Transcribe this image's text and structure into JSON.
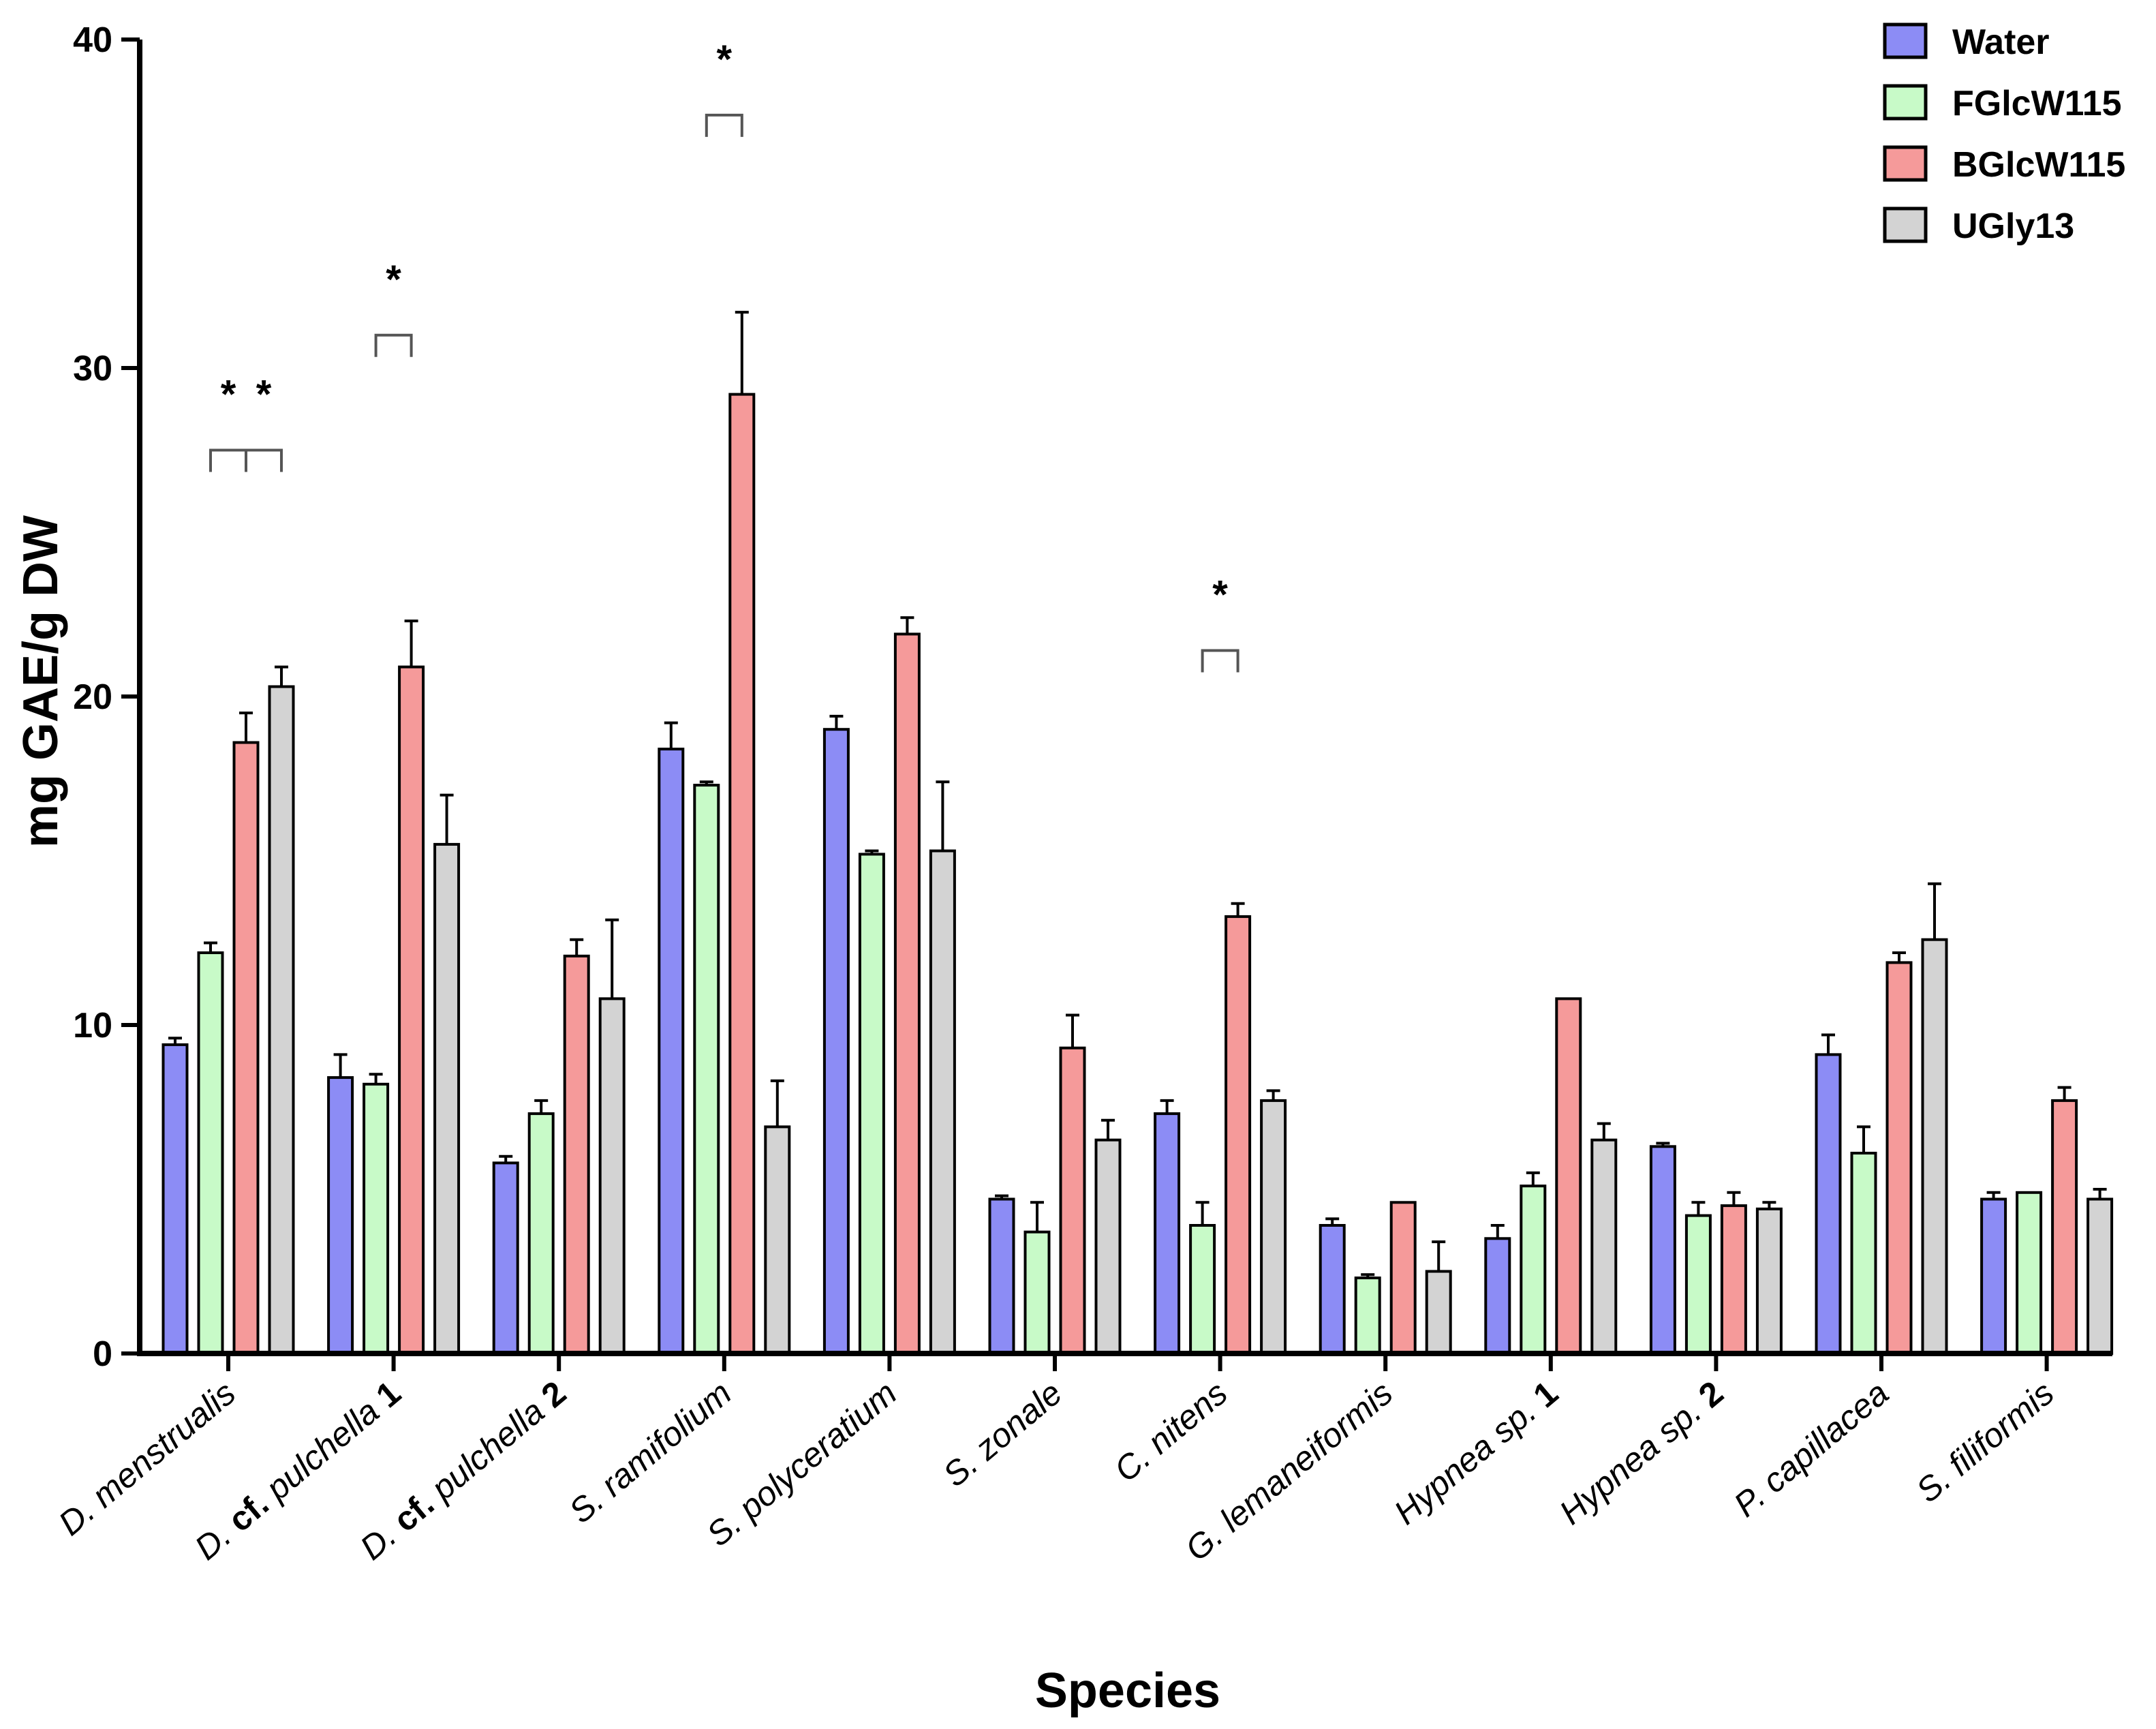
{
  "chart_data": {
    "type": "bar",
    "title": "",
    "xlabel": "Species",
    "ylabel": "mg GAE/g DW",
    "ylim": [
      0,
      40
    ],
    "yticks": [
      0,
      10,
      20,
      30,
      40
    ],
    "grid": false,
    "legend_position": "top-right",
    "categories": [
      [
        {
          "t": "D. menstrualis",
          "b": false
        }
      ],
      [
        {
          "t": "D. ",
          "b": false
        },
        {
          "t": "cf.",
          "b": true
        },
        {
          "t": " pulchella ",
          "b": false
        },
        {
          "t": "1",
          "b": true
        }
      ],
      [
        {
          "t": "D. ",
          "b": false
        },
        {
          "t": "cf.",
          "b": true
        },
        {
          "t": " pulchella ",
          "b": false
        },
        {
          "t": "2",
          "b": true
        }
      ],
      [
        {
          "t": "S. ramifolium",
          "b": false
        }
      ],
      [
        {
          "t": "S. polyceratium",
          "b": false
        }
      ],
      [
        {
          "t": "S. zonale",
          "b": false
        }
      ],
      [
        {
          "t": "C. nitens",
          "b": false
        }
      ],
      [
        {
          "t": "G. lemaneiformis",
          "b": false
        }
      ],
      [
        {
          "t": "Hypnea sp. ",
          "b": false
        },
        {
          "t": "1",
          "b": true
        }
      ],
      [
        {
          "t": "Hypnea sp. ",
          "b": false
        },
        {
          "t": "2",
          "b": true
        }
      ],
      [
        {
          "t": "P. capillacea",
          "b": false
        }
      ],
      [
        {
          "t": "S. filiformis",
          "b": false
        }
      ]
    ],
    "series": [
      {
        "name": "Water",
        "color": "#8c8cf5",
        "values": [
          9.4,
          8.4,
          5.8,
          18.4,
          19.0,
          4.7,
          7.3,
          3.9,
          3.5,
          6.3,
          9.1,
          4.7
        ],
        "errors": [
          0.2,
          0.7,
          0.2,
          0.8,
          0.4,
          0.1,
          0.4,
          0.2,
          0.4,
          0.1,
          0.6,
          0.2
        ]
      },
      {
        "name": "FGlcW115",
        "color": "#c8fac8",
        "values": [
          12.2,
          8.2,
          7.3,
          17.3,
          15.2,
          3.7,
          3.9,
          2.3,
          5.1,
          4.2,
          6.1,
          4.9
        ],
        "errors": [
          0.3,
          0.3,
          0.4,
          0.1,
          0.1,
          0.9,
          0.7,
          0.1,
          0.4,
          0.4,
          0.8,
          0.0
        ]
      },
      {
        "name": "BGlcW115",
        "color": "#f59a9a",
        "values": [
          18.6,
          20.9,
          12.1,
          29.2,
          21.9,
          9.3,
          13.3,
          4.6,
          10.8,
          4.5,
          11.9,
          7.7
        ],
        "errors": [
          0.9,
          1.4,
          0.5,
          2.5,
          0.5,
          1.0,
          0.4,
          0.0,
          0.0,
          0.4,
          0.3,
          0.4
        ]
      },
      {
        "name": "UGly13",
        "color": "#d3d3d3",
        "values": [
          20.3,
          15.5,
          10.8,
          6.9,
          15.3,
          6.5,
          7.7,
          2.5,
          6.5,
          4.4,
          12.6,
          4.7
        ],
        "errors": [
          0.6,
          1.5,
          2.4,
          1.4,
          2.1,
          0.6,
          0.3,
          0.9,
          0.5,
          0.2,
          1.7,
          0.3
        ]
      }
    ],
    "significance": [
      {
        "category": 0,
        "from_series": 1,
        "to_series": 2,
        "bracket_y": 27.5,
        "label": "*"
      },
      {
        "category": 0,
        "from_series": 2,
        "to_series": 3,
        "bracket_y": 27.5,
        "label": "*"
      },
      {
        "category": 1,
        "from_series": 1,
        "to_series": 2,
        "bracket_y": 31.0,
        "label": "*"
      },
      {
        "category": 3,
        "from_series": 1,
        "to_series": 2,
        "bracket_y": 37.7,
        "label": "*"
      },
      {
        "category": 6,
        "from_series": 1,
        "to_series": 2,
        "bracket_y": 21.4,
        "label": "*"
      }
    ]
  }
}
